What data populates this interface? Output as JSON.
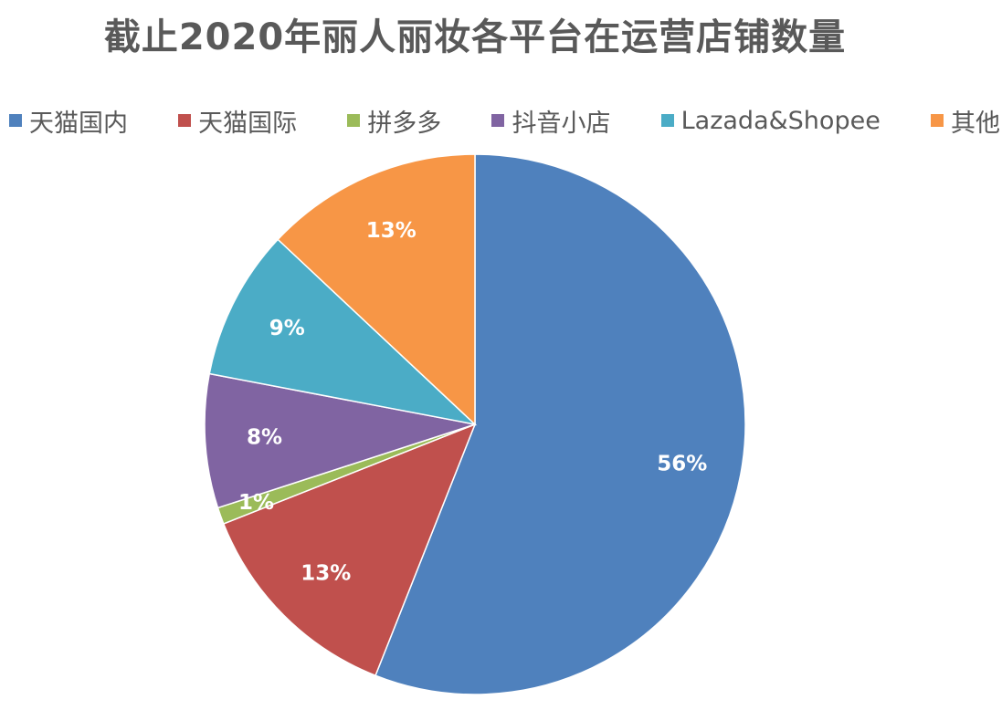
{
  "chart_data": {
    "type": "pie",
    "title": "截止2020年丽人丽妆各平台在运营店铺数量",
    "legend_position": "top",
    "categories": [
      "天猫国内",
      "天猫国际",
      "拼多多",
      "抖音小店",
      "Lazada&Shopee",
      "其他"
    ],
    "values": [
      56,
      13,
      1,
      8,
      9,
      13
    ],
    "data_labels": [
      "56%",
      "13%",
      "1%",
      "8%",
      "9%",
      "13%"
    ],
    "colors": [
      "#4F81BD",
      "#C0504D",
      "#9BBB59",
      "#8064A2",
      "#4BACC6",
      "#F79646"
    ]
  }
}
